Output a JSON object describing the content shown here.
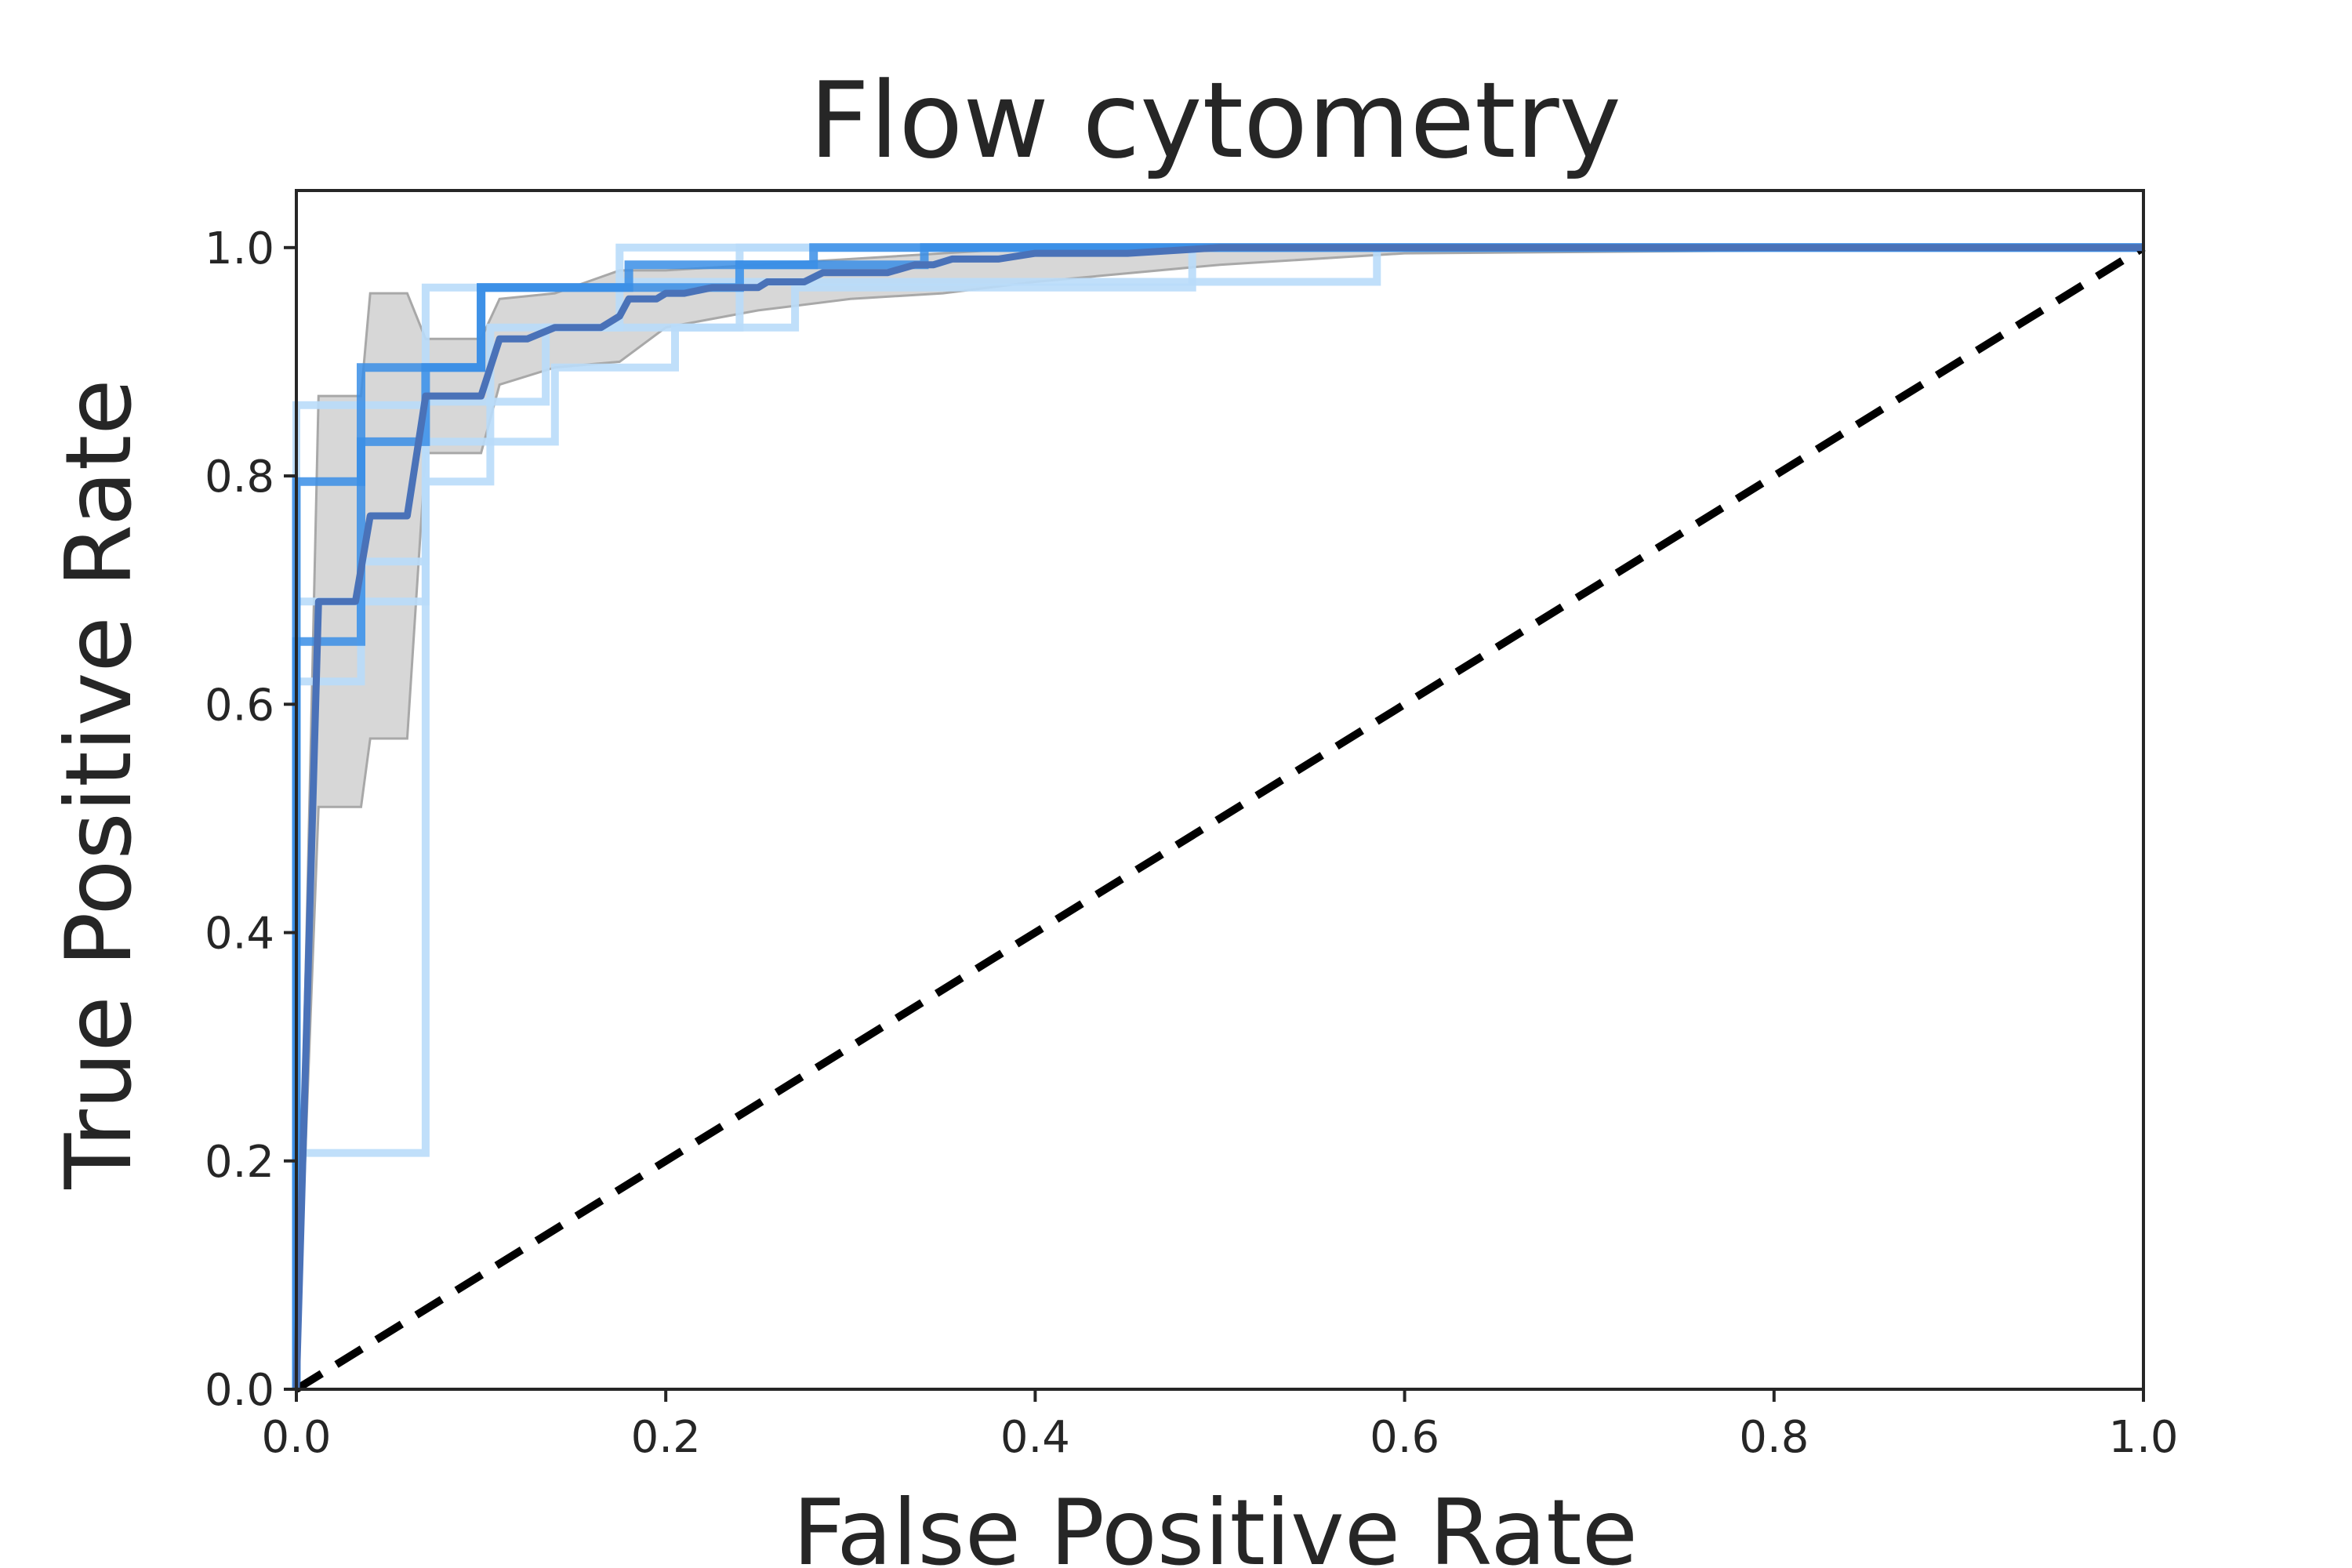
{
  "chart_data": {
    "type": "line",
    "title": "Flow cytometry",
    "xlabel": "False Positive Rate",
    "ylabel": "True Positive Rate",
    "xlim": [
      0.0,
      1.0
    ],
    "ylim": [
      0.0,
      1.05
    ],
    "xticks": [
      "0.0",
      "0.2",
      "0.4",
      "0.6",
      "0.8",
      "1.0"
    ],
    "yticks": [
      "0.0",
      "0.2",
      "0.4",
      "0.6",
      "0.8",
      "1.0"
    ],
    "grid": false,
    "legend": "none",
    "colors": {
      "mean": "#4a72b8",
      "fold_strong": "#3a8ee6",
      "fold_light": "#b9dcfa",
      "band": "#d3d3d3",
      "band_edge": "#a8a8a8",
      "chance": "#000000",
      "frame": "#262626"
    },
    "std_band": {
      "x": [
        0.0,
        0.012,
        0.035,
        0.04,
        0.06,
        0.07,
        0.085,
        0.1,
        0.11,
        0.14,
        0.175,
        0.2,
        0.25,
        0.3,
        0.35,
        0.4,
        0.5,
        0.6,
        1.0
      ],
      "upper": [
        0.0,
        0.87,
        0.87,
        0.96,
        0.96,
        0.92,
        0.92,
        0.92,
        0.955,
        0.96,
        0.98,
        0.98,
        0.985,
        0.99,
        0.995,
        1.0,
        1.0,
        1.0,
        1.0
      ],
      "lower": [
        0.0,
        0.51,
        0.51,
        0.57,
        0.57,
        0.82,
        0.82,
        0.82,
        0.88,
        0.895,
        0.9,
        0.93,
        0.945,
        0.955,
        0.96,
        0.97,
        0.985,
        0.995,
        1.0
      ]
    },
    "folds": [
      {
        "style": "strong",
        "x": [
          0,
          0,
          0.035,
          0.035,
          0.1,
          0.1,
          0.24,
          0.24,
          0.28,
          0.28,
          1.0
        ],
        "y": [
          0,
          0.655,
          0.655,
          0.895,
          0.895,
          0.965,
          0.965,
          0.985,
          0.985,
          1.0,
          1.0
        ]
      },
      {
        "style": "strong",
        "x": [
          0,
          0,
          0.035,
          0.035,
          0.07,
          0.07,
          0.1,
          0.1,
          0.18,
          0.18,
          0.34,
          0.34,
          1.0
        ],
        "y": [
          0,
          0.795,
          0.795,
          0.83,
          0.83,
          0.895,
          0.895,
          0.965,
          0.965,
          0.985,
          0.985,
          1.0,
          1.0
        ]
      },
      {
        "style": "light",
        "x": [
          0,
          0,
          0.07,
          0.07,
          0.1,
          0.1,
          0.175,
          0.175,
          0.38,
          0.38,
          1.0
        ],
        "y": [
          0,
          0.207,
          0.207,
          0.965,
          0.965,
          0.965,
          0.965,
          1.0,
          1.0,
          1.0,
          1.0
        ]
      },
      {
        "style": "light",
        "x": [
          0,
          0,
          0.035,
          0.035,
          0.07,
          0.07,
          0.14,
          0.14,
          0.205,
          0.205,
          0.24,
          0.24,
          1.0
        ],
        "y": [
          0,
          0.862,
          0.862,
          0.862,
          0.862,
          0.83,
          0.83,
          0.895,
          0.895,
          0.93,
          0.93,
          1.0,
          1.0
        ]
      },
      {
        "style": "light",
        "x": [
          0,
          0,
          0.035,
          0.035,
          0.07,
          0.07,
          0.105,
          0.105,
          0.27,
          0.27,
          0.485,
          0.485,
          1.0
        ],
        "y": [
          0,
          0.62,
          0.62,
          0.725,
          0.725,
          0.795,
          0.795,
          0.93,
          0.93,
          0.965,
          0.965,
          1.0,
          1.0
        ]
      },
      {
        "style": "light",
        "x": [
          0,
          0,
          0.035,
          0.035,
          0.07,
          0.07,
          0.135,
          0.135,
          0.175,
          0.175,
          0.585,
          0.585,
          1.0
        ],
        "y": [
          0,
          0.69,
          0.69,
          0.69,
          0.69,
          0.865,
          0.865,
          0.93,
          0.93,
          0.97,
          0.97,
          1.0,
          1.0
        ]
      }
    ],
    "mean": {
      "x": [
        0.0,
        0.012,
        0.032,
        0.04,
        0.06,
        0.07,
        0.085,
        0.1,
        0.11,
        0.125,
        0.14,
        0.165,
        0.175,
        0.18,
        0.195,
        0.2,
        0.21,
        0.225,
        0.25,
        0.255,
        0.275,
        0.285,
        0.32,
        0.335,
        0.345,
        0.355,
        0.38,
        0.4,
        0.45,
        0.5,
        0.6,
        1.0
      ],
      "y": [
        0.0,
        0.69,
        0.69,
        0.765,
        0.765,
        0.87,
        0.87,
        0.87,
        0.92,
        0.92,
        0.93,
        0.93,
        0.94,
        0.955,
        0.955,
        0.96,
        0.96,
        0.965,
        0.965,
        0.97,
        0.97,
        0.978,
        0.978,
        0.985,
        0.985,
        0.99,
        0.99,
        0.995,
        0.995,
        1.0,
        1.0,
        1.0
      ]
    },
    "chance": {
      "x": [
        0.0,
        1.0
      ],
      "y": [
        0.0,
        1.0
      ]
    }
  }
}
